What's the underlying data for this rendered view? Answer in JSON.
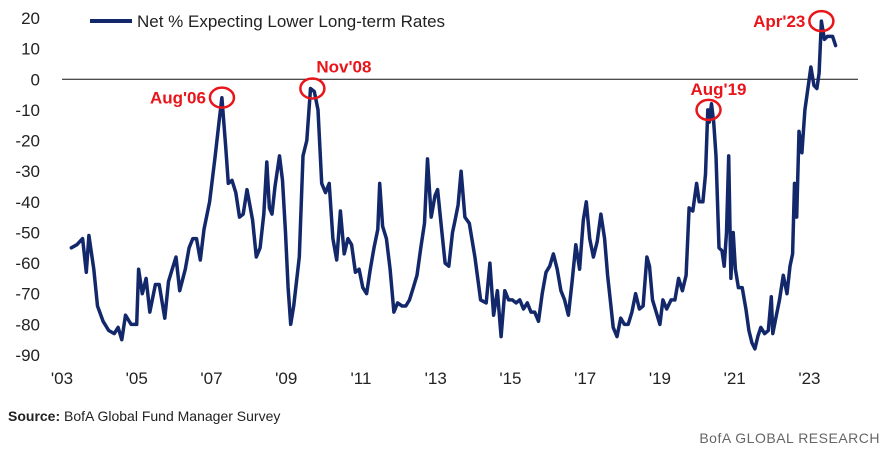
{
  "chart_data": {
    "type": "line",
    "ylim": [
      -90,
      20
    ],
    "yticks": [
      20,
      10,
      0,
      -10,
      -20,
      -30,
      -40,
      -50,
      -60,
      -70,
      -80,
      -90
    ],
    "xlim": [
      2003.0,
      2024.3
    ],
    "xticks": [
      {
        "label": "'03",
        "x": 2003
      },
      {
        "label": "'05",
        "x": 2005
      },
      {
        "label": "'07",
        "x": 2007
      },
      {
        "label": "'09",
        "x": 2009
      },
      {
        "label": "'11",
        "x": 2011
      },
      {
        "label": "'13",
        "x": 2013
      },
      {
        "label": "'15",
        "x": 2015
      },
      {
        "label": "'17",
        "x": 2017
      },
      {
        "label": "'19",
        "x": 2019
      },
      {
        "label": "'21",
        "x": 2021
      },
      {
        "label": "'23",
        "x": 2023
      }
    ],
    "zero_line": true,
    "line_color": "#13286b",
    "annotation_color": "#e8161b",
    "series": [
      {
        "name": "Net % Expecting Lower Long-term Rates",
        "points": [
          [
            2003.25,
            -55
          ],
          [
            2003.4,
            -54
          ],
          [
            2003.55,
            -52
          ],
          [
            2003.65,
            -63
          ],
          [
            2003.72,
            -51
          ],
          [
            2003.85,
            -62
          ],
          [
            2003.95,
            -74
          ],
          [
            2004.1,
            -79
          ],
          [
            2004.25,
            -82
          ],
          [
            2004.4,
            -83
          ],
          [
            2004.5,
            -81
          ],
          [
            2004.6,
            -85
          ],
          [
            2004.7,
            -77
          ],
          [
            2004.85,
            -80
          ],
          [
            2005.0,
            -80
          ],
          [
            2005.05,
            -62
          ],
          [
            2005.15,
            -70
          ],
          [
            2005.25,
            -65
          ],
          [
            2005.35,
            -76
          ],
          [
            2005.5,
            -67
          ],
          [
            2005.6,
            -67
          ],
          [
            2005.75,
            -78
          ],
          [
            2005.85,
            -66
          ],
          [
            2005.95,
            -62
          ],
          [
            2006.05,
            -58
          ],
          [
            2006.15,
            -69
          ],
          [
            2006.3,
            -62
          ],
          [
            2006.4,
            -55
          ],
          [
            2006.5,
            -52
          ],
          [
            2006.6,
            -52
          ],
          [
            2006.7,
            -59
          ],
          [
            2006.8,
            -49
          ],
          [
            2006.95,
            -40
          ],
          [
            2007.1,
            -25
          ],
          [
            2007.2,
            -14
          ],
          [
            2007.28,
            -6
          ],
          [
            2007.38,
            -22
          ],
          [
            2007.45,
            -34
          ],
          [
            2007.55,
            -33
          ],
          [
            2007.65,
            -37
          ],
          [
            2007.75,
            -45
          ],
          [
            2007.85,
            -44
          ],
          [
            2007.95,
            -36
          ],
          [
            2008.1,
            -46
          ],
          [
            2008.2,
            -58
          ],
          [
            2008.3,
            -55
          ],
          [
            2008.4,
            -44
          ],
          [
            2008.48,
            -27
          ],
          [
            2008.55,
            -42
          ],
          [
            2008.62,
            -44
          ],
          [
            2008.7,
            -35
          ],
          [
            2008.82,
            -25
          ],
          [
            2008.9,
            -33
          ],
          [
            2008.98,
            -50
          ],
          [
            2009.05,
            -68
          ],
          [
            2009.12,
            -80
          ],
          [
            2009.2,
            -74
          ],
          [
            2009.35,
            -58
          ],
          [
            2009.45,
            -25
          ],
          [
            2009.55,
            -20
          ],
          [
            2009.65,
            -3
          ],
          [
            2009.75,
            -4
          ],
          [
            2009.85,
            -10
          ],
          [
            2009.95,
            -34
          ],
          [
            2010.05,
            -37
          ],
          [
            2010.15,
            -34
          ],
          [
            2010.25,
            -52
          ],
          [
            2010.35,
            -59
          ],
          [
            2010.45,
            -43
          ],
          [
            2010.55,
            -57
          ],
          [
            2010.65,
            -52
          ],
          [
            2010.75,
            -54
          ],
          [
            2010.85,
            -63
          ],
          [
            2010.95,
            -62
          ],
          [
            2011.05,
            -68
          ],
          [
            2011.15,
            -70
          ],
          [
            2011.25,
            -62
          ],
          [
            2011.35,
            -55
          ],
          [
            2011.45,
            -49
          ],
          [
            2011.5,
            -34
          ],
          [
            2011.58,
            -48
          ],
          [
            2011.68,
            -52
          ],
          [
            2011.78,
            -62
          ],
          [
            2011.88,
            -76
          ],
          [
            2011.98,
            -73
          ],
          [
            2012.1,
            -74
          ],
          [
            2012.2,
            -74
          ],
          [
            2012.3,
            -72
          ],
          [
            2012.4,
            -68
          ],
          [
            2012.5,
            -64
          ],
          [
            2012.6,
            -55
          ],
          [
            2012.7,
            -47
          ],
          [
            2012.78,
            -26
          ],
          [
            2012.88,
            -45
          ],
          [
            2012.98,
            -38
          ],
          [
            2013.05,
            -36
          ],
          [
            2013.15,
            -48
          ],
          [
            2013.25,
            -60
          ],
          [
            2013.35,
            -61
          ],
          [
            2013.45,
            -50
          ],
          [
            2013.52,
            -46
          ],
          [
            2013.6,
            -41
          ],
          [
            2013.68,
            -30
          ],
          [
            2013.78,
            -45
          ],
          [
            2013.9,
            -47
          ],
          [
            2014.05,
            -58
          ],
          [
            2014.2,
            -72
          ],
          [
            2014.35,
            -73
          ],
          [
            2014.45,
            -60
          ],
          [
            2014.55,
            -77
          ],
          [
            2014.65,
            -69
          ],
          [
            2014.75,
            -84
          ],
          [
            2014.85,
            -69
          ],
          [
            2014.95,
            -72
          ],
          [
            2015.05,
            -72
          ],
          [
            2015.15,
            -73
          ],
          [
            2015.25,
            -72
          ],
          [
            2015.35,
            -75
          ],
          [
            2015.45,
            -73
          ],
          [
            2015.55,
            -76
          ],
          [
            2015.65,
            -76
          ],
          [
            2015.75,
            -79
          ],
          [
            2015.85,
            -70
          ],
          [
            2015.95,
            -63
          ],
          [
            2016.05,
            -61
          ],
          [
            2016.15,
            -57
          ],
          [
            2016.25,
            -62
          ],
          [
            2016.35,
            -69
          ],
          [
            2016.45,
            -72
          ],
          [
            2016.55,
            -77
          ],
          [
            2016.65,
            -66
          ],
          [
            2016.75,
            -54
          ],
          [
            2016.85,
            -62
          ],
          [
            2016.95,
            -46
          ],
          [
            2017.03,
            -40
          ],
          [
            2017.12,
            -52
          ],
          [
            2017.22,
            -58
          ],
          [
            2017.32,
            -53
          ],
          [
            2017.42,
            -44
          ],
          [
            2017.52,
            -52
          ],
          [
            2017.6,
            -64
          ],
          [
            2017.68,
            -73
          ],
          [
            2017.75,
            -81
          ],
          [
            2017.85,
            -84
          ],
          [
            2017.95,
            -78
          ],
          [
            2018.05,
            -80
          ],
          [
            2018.15,
            -80
          ],
          [
            2018.25,
            -76
          ],
          [
            2018.35,
            -70
          ],
          [
            2018.45,
            -75
          ],
          [
            2018.55,
            -74
          ],
          [
            2018.65,
            -58
          ],
          [
            2018.72,
            -61
          ],
          [
            2018.8,
            -72
          ],
          [
            2018.9,
            -76
          ],
          [
            2019.0,
            -80
          ],
          [
            2019.08,
            -72
          ],
          [
            2019.18,
            -75
          ],
          [
            2019.3,
            -72
          ],
          [
            2019.4,
            -72
          ],
          [
            2019.5,
            -65
          ],
          [
            2019.6,
            -69
          ],
          [
            2019.7,
            -64
          ],
          [
            2019.78,
            -42
          ],
          [
            2019.88,
            -43
          ],
          [
            2019.98,
            -34
          ],
          [
            2020.05,
            -40
          ],
          [
            2020.15,
            -40
          ],
          [
            2020.22,
            -31
          ],
          [
            2020.28,
            -10
          ],
          [
            2020.32,
            -14
          ],
          [
            2020.38,
            -8
          ],
          [
            2020.44,
            -14
          ],
          [
            2020.5,
            -25
          ],
          [
            2020.58,
            -55
          ],
          [
            2020.66,
            -56
          ],
          [
            2020.72,
            -61
          ],
          [
            2020.78,
            -50
          ],
          [
            2020.84,
            -25
          ],
          [
            2020.9,
            -65
          ],
          [
            2020.96,
            -50
          ],
          [
            2021.02,
            -62
          ],
          [
            2021.1,
            -68
          ],
          [
            2021.2,
            -68
          ],
          [
            2021.3,
            -75
          ],
          [
            2021.38,
            -82
          ],
          [
            2021.46,
            -86
          ],
          [
            2021.54,
            -88
          ],
          [
            2021.62,
            -84
          ],
          [
            2021.7,
            -81
          ],
          [
            2021.8,
            -83
          ],
          [
            2021.9,
            -82
          ],
          [
            2021.98,
            -71
          ],
          [
            2022.02,
            -83
          ],
          [
            2022.1,
            -78
          ],
          [
            2022.2,
            -72
          ],
          [
            2022.3,
            -64
          ],
          [
            2022.4,
            -70
          ],
          [
            2022.48,
            -61
          ],
          [
            2022.55,
            -57
          ],
          [
            2022.6,
            -34
          ],
          [
            2022.66,
            -45
          ],
          [
            2022.72,
            -17
          ],
          [
            2022.8,
            -24
          ],
          [
            2022.88,
            -10
          ],
          [
            2022.96,
            -3
          ],
          [
            2023.04,
            4
          ],
          [
            2023.12,
            -2
          ],
          [
            2023.2,
            -3
          ],
          [
            2023.26,
            2
          ],
          [
            2023.32,
            19
          ],
          [
            2023.4,
            13
          ],
          [
            2023.48,
            14
          ],
          [
            2023.56,
            14
          ],
          [
            2023.62,
            14
          ],
          [
            2023.7,
            11
          ]
        ]
      }
    ],
    "annotations": [
      {
        "label": "Aug'06",
        "x": 2007.28,
        "y": -6,
        "pos": "left"
      },
      {
        "label": "Nov'08",
        "x": 2009.7,
        "y": -3,
        "pos": "above-right"
      },
      {
        "label": "Aug'19",
        "x": 2020.3,
        "y": -10,
        "pos": "above"
      },
      {
        "label": "Apr'23",
        "x": 2023.32,
        "y": 19,
        "pos": "left"
      }
    ]
  },
  "legend": {
    "label": "Net % Expecting Lower Long-term Rates"
  },
  "footer": {
    "source_label": "Source:",
    "source_text": "BofA Global Fund Manager Survey",
    "brand": "BofA GLOBAL RESEARCH"
  }
}
